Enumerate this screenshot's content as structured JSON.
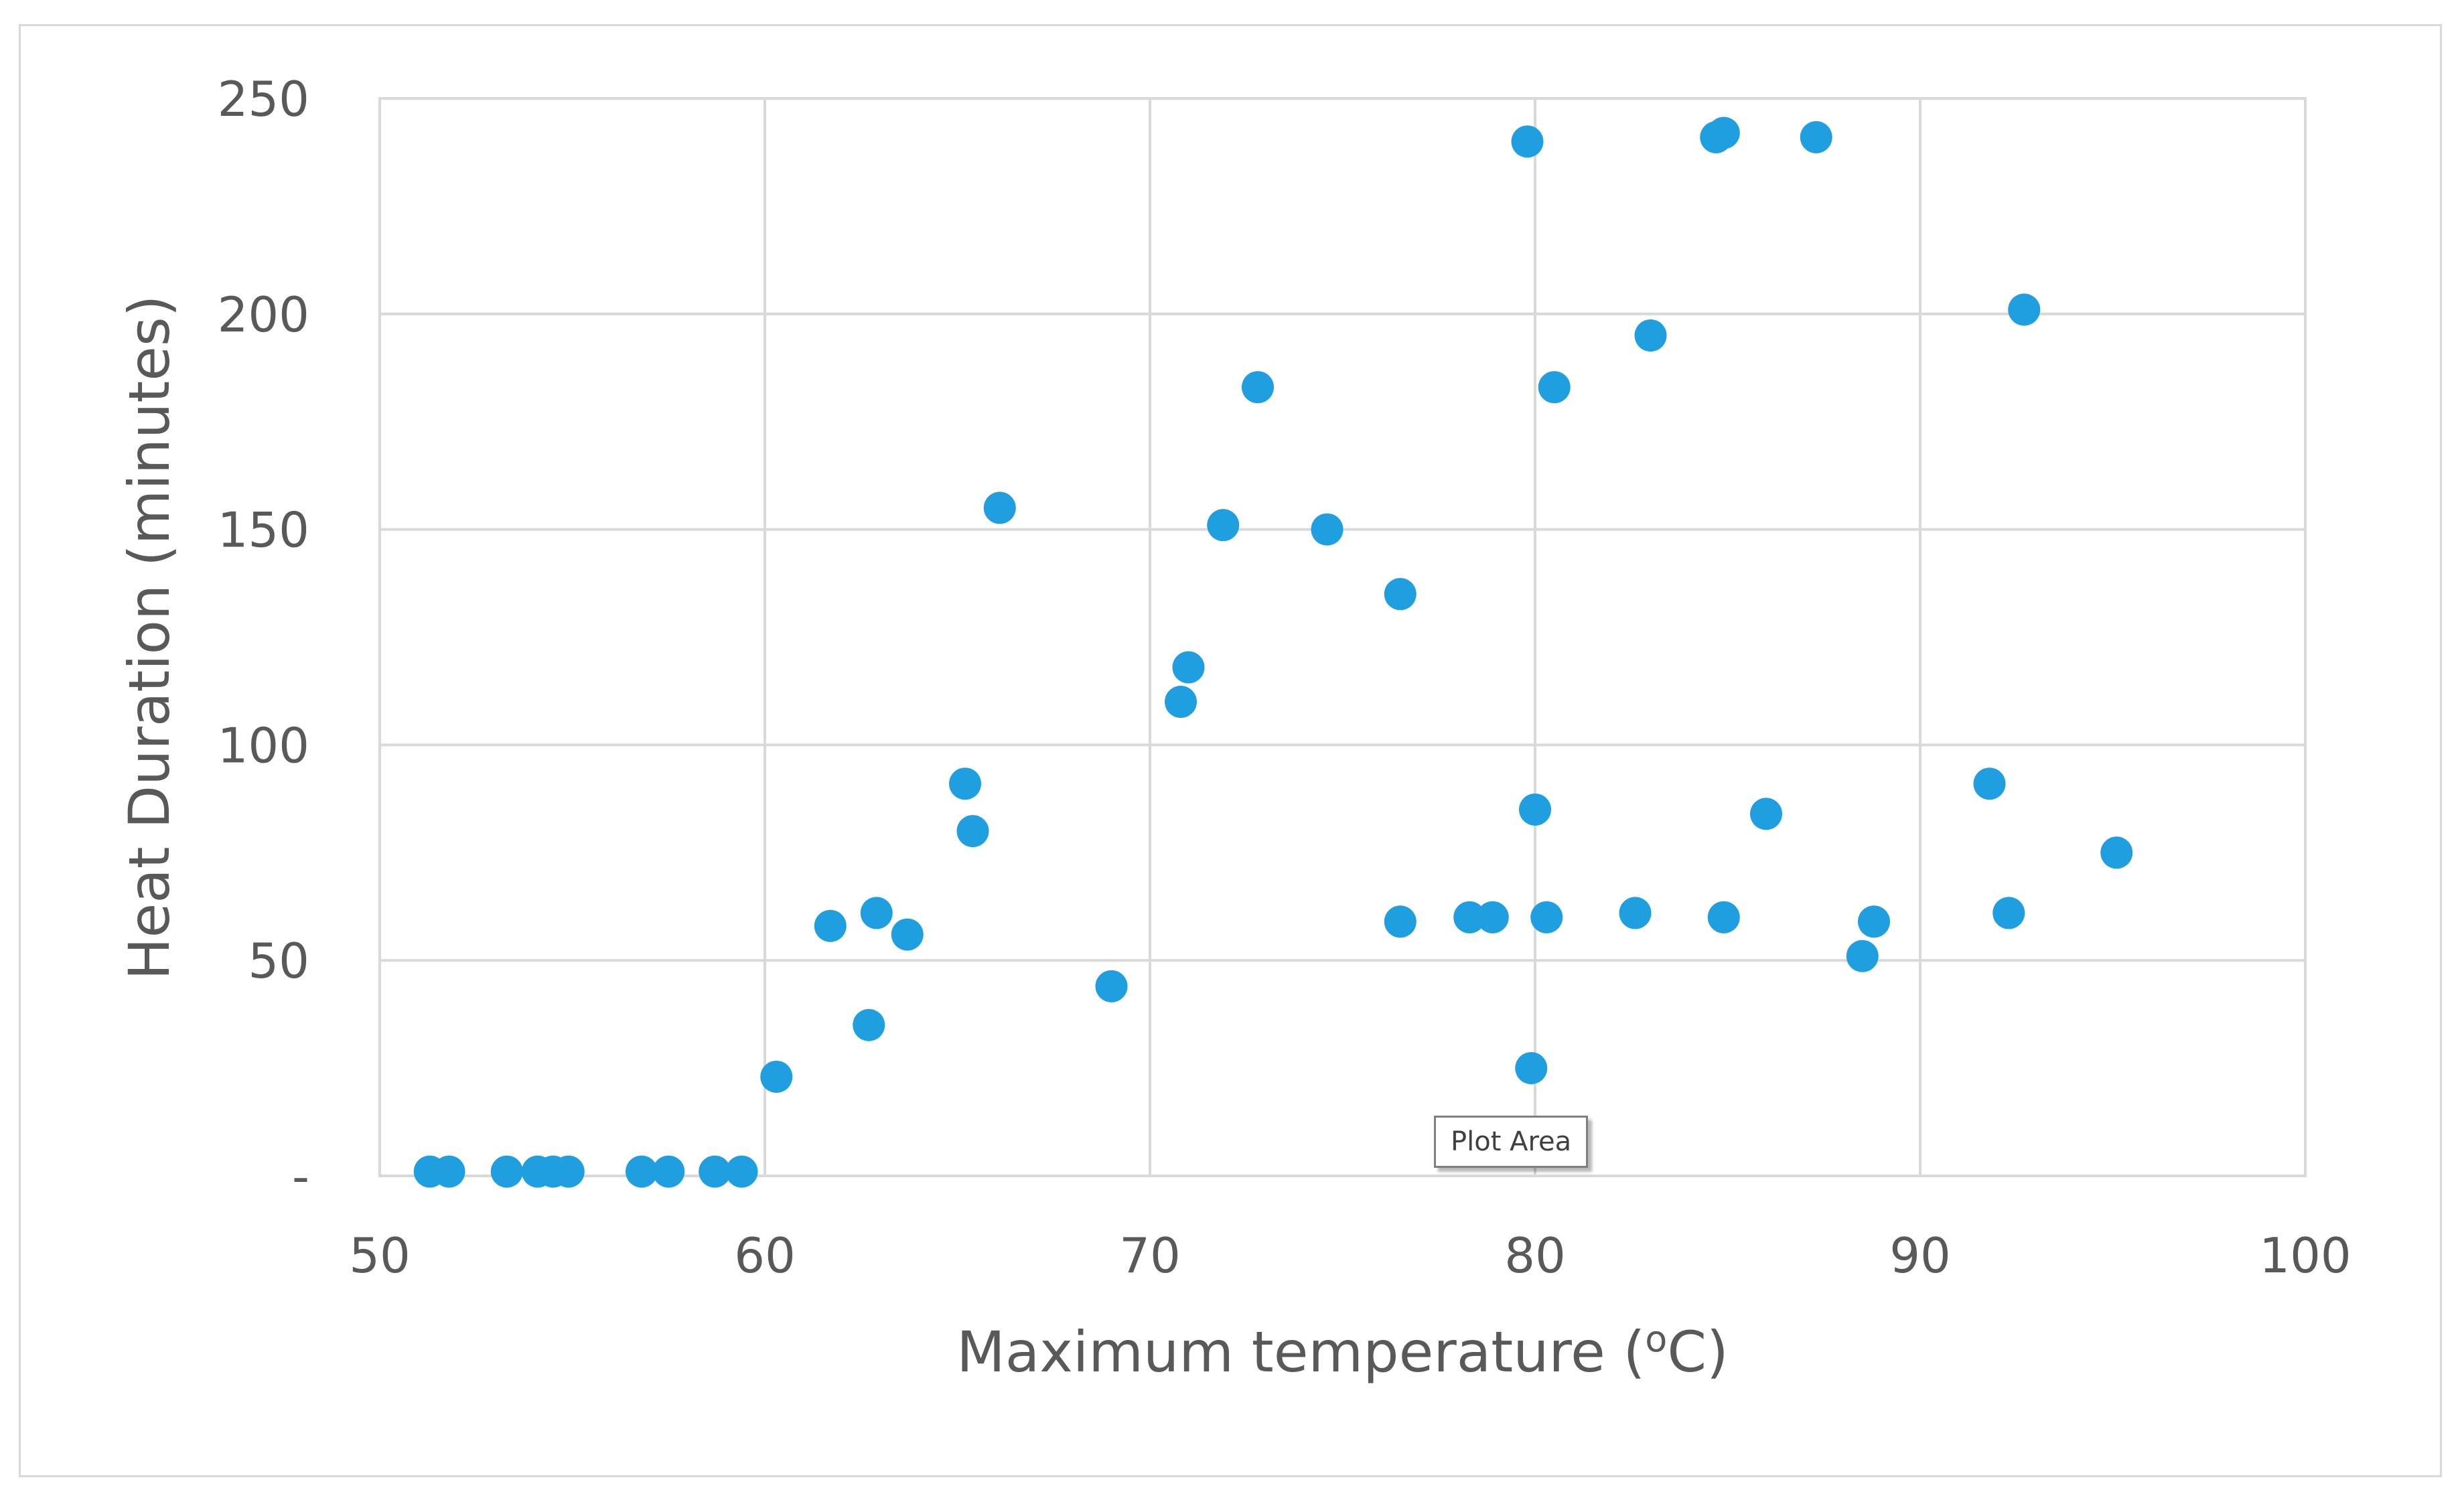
{
  "chart_data": {
    "type": "scatter",
    "title": "",
    "xlabel_main": "Maximum temperature (",
    "xlabel_sup": "o",
    "xlabel_end": "C)",
    "ylabel": "Heat Duration (minutes)",
    "xlim": [
      50,
      100
    ],
    "ylim": [
      0,
      250
    ],
    "xticks": [
      50,
      60,
      70,
      80,
      90,
      100
    ],
    "xtick_labels": [
      "50",
      "60",
      "70",
      "80",
      "90",
      "100"
    ],
    "yticks": [
      0,
      50,
      100,
      150,
      200,
      250
    ],
    "ytick_labels": [
      "-",
      "50",
      "100",
      "150",
      "200",
      "250"
    ],
    "grid": true,
    "marker_color": "#1f9ee0",
    "gridline_color": "#d9d9d9",
    "series": [
      {
        "name": "Heat Duration",
        "points": [
          [
            51.3,
            1
          ],
          [
            51.8,
            1
          ],
          [
            53.3,
            1
          ],
          [
            54.1,
            1
          ],
          [
            54.5,
            1
          ],
          [
            54.9,
            1
          ],
          [
            56.8,
            1
          ],
          [
            57.5,
            1
          ],
          [
            58.7,
            1
          ],
          [
            59.4,
            1
          ],
          [
            60.3,
            23
          ],
          [
            61.7,
            58
          ],
          [
            62.7,
            35
          ],
          [
            62.9,
            61
          ],
          [
            63.7,
            56
          ],
          [
            65.2,
            91
          ],
          [
            65.4,
            80
          ],
          [
            66.1,
            155
          ],
          [
            69.0,
            44
          ],
          [
            70.8,
            110
          ],
          [
            71.0,
            118
          ],
          [
            71.9,
            151
          ],
          [
            72.8,
            183
          ],
          [
            74.6,
            150
          ],
          [
            76.5,
            135
          ],
          [
            76.5,
            59
          ],
          [
            78.3,
            60
          ],
          [
            78.9,
            60
          ],
          [
            79.8,
            240
          ],
          [
            79.9,
            25
          ],
          [
            80.0,
            85
          ],
          [
            80.3,
            60
          ],
          [
            80.5,
            183
          ],
          [
            82.6,
            61
          ],
          [
            83.0,
            195
          ],
          [
            84.7,
            241
          ],
          [
            84.9,
            242
          ],
          [
            84.9,
            60
          ],
          [
            86.0,
            84
          ],
          [
            87.3,
            241
          ],
          [
            88.5,
            51
          ],
          [
            88.8,
            59
          ],
          [
            91.8,
            91
          ],
          [
            92.3,
            61
          ],
          [
            92.7,
            201
          ],
          [
            95.1,
            75
          ]
        ]
      }
    ]
  },
  "tooltip": {
    "text": "Plot Area"
  }
}
